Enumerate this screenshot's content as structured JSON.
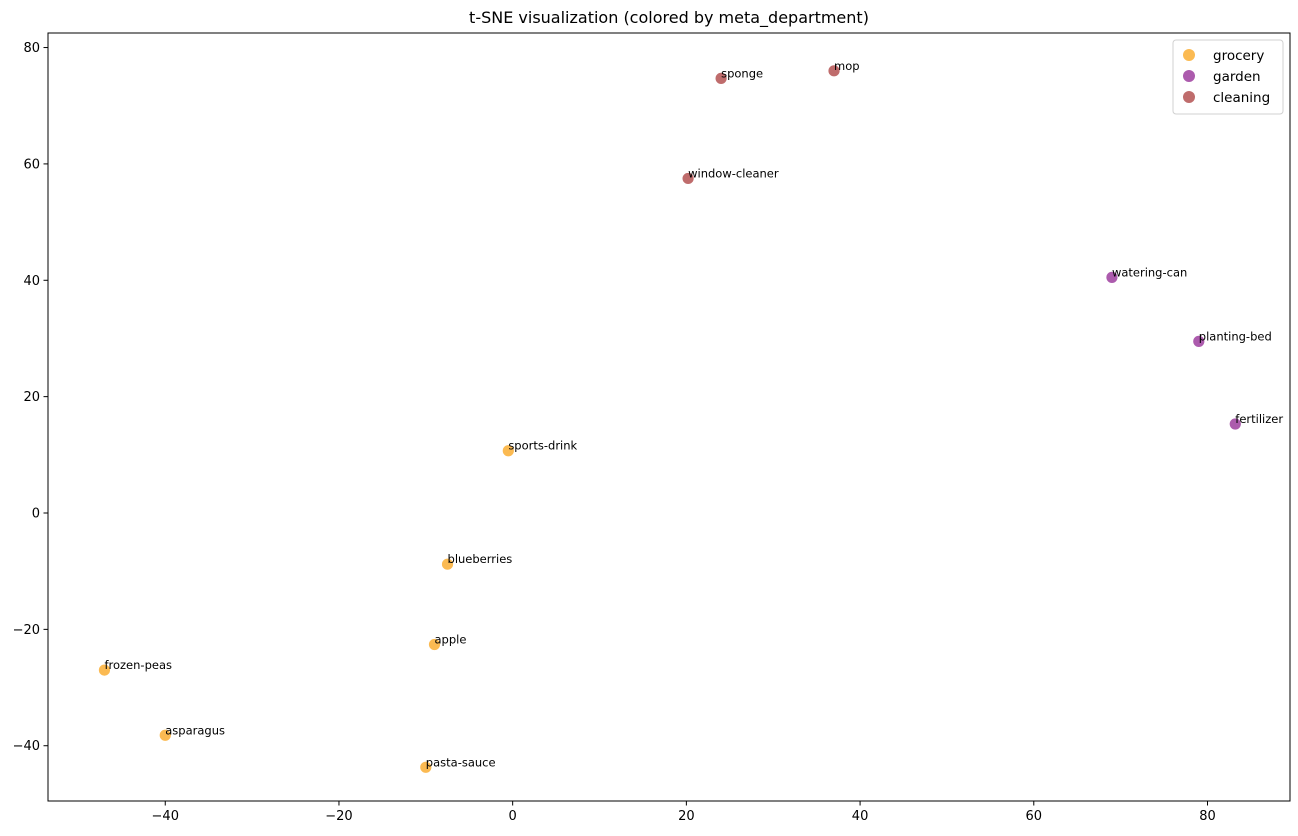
{
  "chart_data": {
    "type": "scatter",
    "title": "t-SNE visualization (colored by meta_department)",
    "xlabel": "",
    "ylabel": "",
    "xlim": [
      -53.5,
      89.5
    ],
    "ylim": [
      -49.5,
      82.5
    ],
    "xticks": [
      -40,
      -20,
      0,
      20,
      40,
      60,
      80
    ],
    "yticks": [
      -40,
      -20,
      0,
      20,
      40,
      60,
      80
    ],
    "grid": false,
    "legend_position": "top-right",
    "series": [
      {
        "name": "grocery",
        "color": "#fbb33f",
        "points": [
          {
            "label": "sports-drink",
            "x": -0.5,
            "y": 10.7
          },
          {
            "label": "blueberries",
            "x": -7.5,
            "y": -8.8
          },
          {
            "label": "apple",
            "x": -9.0,
            "y": -22.6
          },
          {
            "label": "frozen-peas",
            "x": -47.0,
            "y": -27.0
          },
          {
            "label": "asparagus",
            "x": -40.0,
            "y": -38.2
          },
          {
            "label": "pasta-sauce",
            "x": -10.0,
            "y": -43.7
          }
        ]
      },
      {
        "name": "garden",
        "color": "#a349a4",
        "points": [
          {
            "label": "watering-can",
            "x": 69.0,
            "y": 40.5
          },
          {
            "label": "planting-bed",
            "x": 79.0,
            "y": 29.5
          },
          {
            "label": "fertilizer",
            "x": 83.2,
            "y": 15.3
          }
        ]
      },
      {
        "name": "cleaning",
        "color": "#b85c5c",
        "points": [
          {
            "label": "sponge",
            "x": 24.0,
            "y": 74.7
          },
          {
            "label": "mop",
            "x": 37.0,
            "y": 76.0
          },
          {
            "label": "window-cleaner",
            "x": 20.2,
            "y": 57.5
          }
        ]
      }
    ]
  }
}
